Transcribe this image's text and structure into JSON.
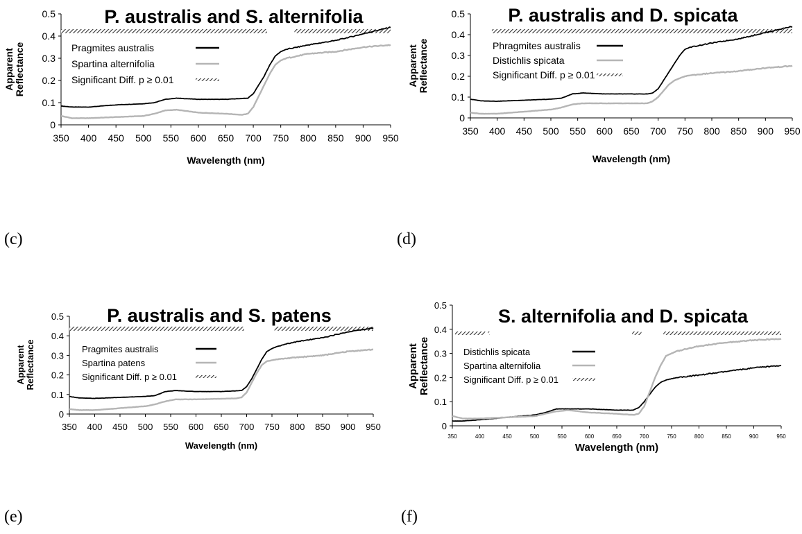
{
  "panels": [
    {
      "label": "(c)"
    },
    {
      "label": "(d)"
    },
    {
      "label": "(e)"
    },
    {
      "label": "(f)"
    }
  ],
  "colors": {
    "dark": "#000000",
    "light": "#b5b5b5",
    "hatch": "#444444"
  },
  "chart_data": [
    {
      "type": "line",
      "title": "P. australis and S. alternifolia",
      "xlabel": "Wavelength (nm)",
      "ylabel": "Apparent Reflectance",
      "xlim": [
        350,
        950
      ],
      "ylim": [
        0,
        0.5
      ],
      "x_ticks": [
        "350",
        "400",
        "450",
        "500",
        "550",
        "600",
        "650",
        "700",
        "750",
        "800",
        "850",
        "900",
        "950"
      ],
      "y_ticks": [
        "0",
        "0.1",
        "0.2",
        "0.3",
        "0.4",
        "0.5"
      ],
      "legend": [
        {
          "label": "Pragmites australis",
          "kind": "dark"
        },
        {
          "label": "Spartina alternifolia",
          "kind": "light"
        },
        {
          "label": "Significant Diff. p ≥ 0.01",
          "kind": "hatch"
        }
      ],
      "significant_ranges": [
        [
          350,
          725
        ],
        [
          775,
          950
        ]
      ],
      "series": [
        {
          "name": "Pragmites australis",
          "color": "dark",
          "x": [
            350,
            370,
            400,
            450,
            500,
            520,
            540,
            560,
            600,
            650,
            690,
            700,
            710,
            720,
            730,
            740,
            750,
            760,
            780,
            800,
            850,
            900,
            950
          ],
          "y": [
            0.085,
            0.08,
            0.08,
            0.09,
            0.095,
            0.1,
            0.115,
            0.12,
            0.115,
            0.115,
            0.12,
            0.14,
            0.18,
            0.22,
            0.27,
            0.31,
            0.33,
            0.34,
            0.35,
            0.36,
            0.38,
            0.41,
            0.44
          ]
        },
        {
          "name": "Spartina alternifolia",
          "color": "light",
          "x": [
            350,
            370,
            400,
            450,
            500,
            520,
            540,
            560,
            600,
            650,
            680,
            690,
            700,
            710,
            720,
            730,
            740,
            750,
            760,
            780,
            800,
            850,
            900,
            950
          ],
          "y": [
            0.04,
            0.03,
            0.03,
            0.035,
            0.04,
            0.05,
            0.065,
            0.068,
            0.055,
            0.05,
            0.045,
            0.05,
            0.08,
            0.13,
            0.18,
            0.23,
            0.27,
            0.29,
            0.3,
            0.31,
            0.32,
            0.33,
            0.35,
            0.36
          ]
        }
      ]
    },
    {
      "type": "line",
      "title": "P. australis and D. spicata",
      "xlabel": "Wavelength (nm)",
      "ylabel": "Apparent Reflectance",
      "xlim": [
        350,
        950
      ],
      "ylim": [
        0,
        0.5
      ],
      "x_ticks": [
        "350",
        "400",
        "450",
        "500",
        "550",
        "600",
        "650",
        "700",
        "750",
        "800",
        "850",
        "900",
        "950"
      ],
      "y_ticks": [
        "0",
        "0.1",
        "0.2",
        "0.3",
        "0.4",
        "0.5"
      ],
      "legend": [
        {
          "label": "Phragmites australis",
          "kind": "dark"
        },
        {
          "label": "Distichlis spicata",
          "kind": "light"
        },
        {
          "label": "Significant Diff. p ≥ 0.01",
          "kind": "hatch"
        }
      ],
      "significant_ranges": [
        [
          390,
          950
        ]
      ],
      "series": [
        {
          "name": "Phragmites australis",
          "color": "dark",
          "x": [
            350,
            370,
            400,
            450,
            500,
            520,
            540,
            560,
            600,
            650,
            680,
            690,
            700,
            710,
            720,
            730,
            740,
            750,
            760,
            780,
            800,
            850,
            900,
            950
          ],
          "y": [
            0.09,
            0.082,
            0.08,
            0.085,
            0.09,
            0.095,
            0.115,
            0.12,
            0.115,
            0.115,
            0.115,
            0.12,
            0.14,
            0.18,
            0.22,
            0.26,
            0.3,
            0.33,
            0.34,
            0.35,
            0.36,
            0.38,
            0.41,
            0.44
          ]
        },
        {
          "name": "Distichlis spicata",
          "color": "light",
          "x": [
            350,
            370,
            400,
            450,
            500,
            520,
            540,
            560,
            600,
            650,
            680,
            690,
            700,
            710,
            720,
            730,
            740,
            750,
            760,
            780,
            800,
            850,
            900,
            950
          ],
          "y": [
            0.025,
            0.02,
            0.02,
            0.03,
            0.04,
            0.05,
            0.065,
            0.07,
            0.07,
            0.07,
            0.07,
            0.08,
            0.1,
            0.13,
            0.16,
            0.18,
            0.19,
            0.2,
            0.205,
            0.21,
            0.215,
            0.225,
            0.24,
            0.25
          ]
        }
      ]
    },
    {
      "type": "line",
      "title": "P. australis and S. patens",
      "xlabel": "Wavelength (nm)",
      "ylabel": "Apparent Reflectance",
      "xlim": [
        350,
        950
      ],
      "ylim": [
        0,
        0.5
      ],
      "x_ticks": [
        "350",
        "400",
        "450",
        "500",
        "550",
        "600",
        "650",
        "700",
        "750",
        "800",
        "850",
        "900",
        "950"
      ],
      "y_ticks": [
        "0",
        "0.1",
        "0.2",
        "0.3",
        "0.4",
        "0.5"
      ],
      "legend": [
        {
          "label": "Pragmites australis",
          "kind": "dark"
        },
        {
          "label": "Spartina patens",
          "kind": "light"
        },
        {
          "label": "Significant Diff. p ≥ 0.01",
          "kind": "hatch"
        }
      ],
      "significant_ranges": [
        [
          350,
          695
        ],
        [
          755,
          950
        ]
      ],
      "series": [
        {
          "name": "Pragmites australis",
          "color": "dark",
          "x": [
            350,
            370,
            400,
            450,
            500,
            520,
            540,
            560,
            600,
            650,
            690,
            700,
            710,
            720,
            730,
            740,
            750,
            760,
            780,
            800,
            850,
            900,
            950
          ],
          "y": [
            0.09,
            0.082,
            0.08,
            0.085,
            0.09,
            0.095,
            0.115,
            0.12,
            0.115,
            0.115,
            0.12,
            0.14,
            0.18,
            0.23,
            0.28,
            0.32,
            0.335,
            0.345,
            0.36,
            0.37,
            0.39,
            0.42,
            0.44
          ]
        },
        {
          "name": "Spartina patens",
          "color": "light",
          "x": [
            350,
            370,
            400,
            450,
            500,
            520,
            540,
            560,
            600,
            650,
            680,
            690,
            700,
            710,
            720,
            730,
            740,
            750,
            760,
            780,
            800,
            850,
            900,
            950
          ],
          "y": [
            0.025,
            0.02,
            0.02,
            0.03,
            0.04,
            0.05,
            0.065,
            0.075,
            0.075,
            0.078,
            0.08,
            0.085,
            0.11,
            0.16,
            0.21,
            0.25,
            0.27,
            0.275,
            0.28,
            0.285,
            0.29,
            0.3,
            0.32,
            0.33
          ]
        }
      ]
    },
    {
      "type": "line",
      "title": "S. alternifolia and D. spicata",
      "xlabel": "Wavelength (nm)",
      "ylabel": "Apparent Reflectance",
      "xlim": [
        350,
        950
      ],
      "ylim": [
        0,
        0.5
      ],
      "x_ticks": [
        "350",
        "400",
        "450",
        "500",
        "550",
        "600",
        "650",
        "700",
        "750",
        "800",
        "850",
        "900",
        "950"
      ],
      "y_ticks": [
        "0",
        "0.1",
        "0.2",
        "0.3",
        "0.4",
        "0.5"
      ],
      "legend": [
        {
          "label": "Distichlis spicata",
          "kind": "dark"
        },
        {
          "label": "Spartina alternifolia",
          "kind": "light"
        },
        {
          "label": "Significant Diff. p ≥ 0.01",
          "kind": "hatch"
        }
      ],
      "significant_ranges": [
        [
          355,
          410
        ],
        [
          415,
          418
        ],
        [
          678,
          695
        ],
        [
          735,
          950
        ]
      ],
      "series": [
        {
          "name": "Distichlis spicata",
          "color": "dark",
          "x": [
            350,
            370,
            400,
            450,
            500,
            520,
            540,
            560,
            600,
            650,
            680,
            690,
            700,
            710,
            720,
            730,
            740,
            750,
            760,
            780,
            800,
            850,
            900,
            950
          ],
          "y": [
            0.02,
            0.02,
            0.025,
            0.035,
            0.045,
            0.055,
            0.07,
            0.07,
            0.07,
            0.065,
            0.065,
            0.075,
            0.1,
            0.13,
            0.16,
            0.18,
            0.19,
            0.195,
            0.2,
            0.205,
            0.21,
            0.225,
            0.24,
            0.25
          ]
        },
        {
          "name": "Spartina alternifolia",
          "color": "light",
          "x": [
            350,
            370,
            400,
            450,
            500,
            520,
            540,
            560,
            600,
            650,
            680,
            690,
            700,
            710,
            720,
            730,
            740,
            750,
            760,
            780,
            800,
            850,
            900,
            950
          ],
          "y": [
            0.04,
            0.03,
            0.03,
            0.035,
            0.04,
            0.05,
            0.06,
            0.065,
            0.055,
            0.05,
            0.045,
            0.05,
            0.08,
            0.14,
            0.2,
            0.25,
            0.29,
            0.3,
            0.31,
            0.32,
            0.33,
            0.345,
            0.355,
            0.36
          ]
        }
      ]
    }
  ]
}
